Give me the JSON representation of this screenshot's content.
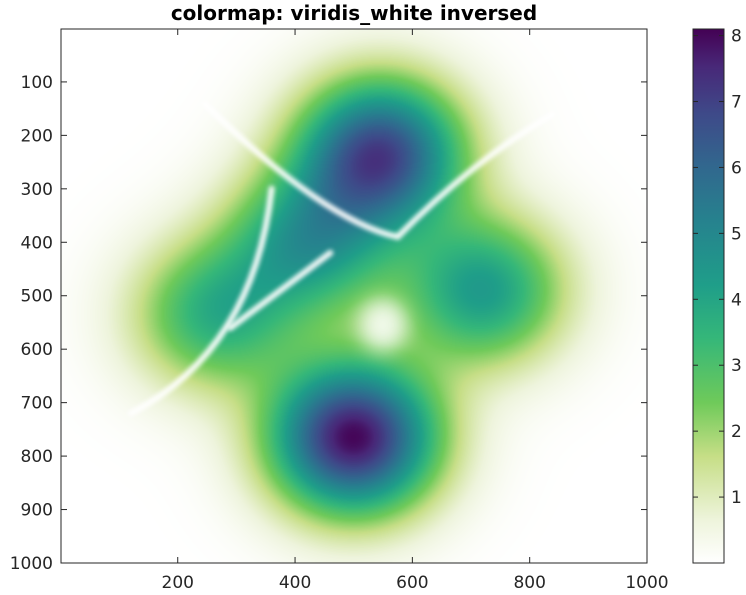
{
  "chart_data": {
    "type": "heatmap",
    "title": "colormap: viridis_white inversed",
    "colormap": "viridis_white inversed",
    "xlabel": "",
    "ylabel": "",
    "xlim": [
      1,
      1000
    ],
    "ylim": [
      1,
      1000
    ],
    "y_direction": "reversed",
    "xticks": [
      200,
      400,
      600,
      800,
      1000
    ],
    "yticks": [
      100,
      200,
      300,
      400,
      500,
      600,
      700,
      800,
      900,
      1000
    ],
    "colorbar": {
      "range": [
        0,
        8.1
      ],
      "ticks": [
        1,
        2,
        3,
        4,
        5,
        6,
        7,
        8
      ]
    },
    "peaks": [
      {
        "x": 500,
        "y": 765,
        "value": 8.0
      },
      {
        "x": 545,
        "y": 235,
        "value": 6.8
      },
      {
        "x": 720,
        "y": 490,
        "value": 4.0
      },
      {
        "x": 425,
        "y": 400,
        "value": 3.9
      },
      {
        "x": 265,
        "y": 535,
        "value": 3.3
      }
    ],
    "zero_level_curves": [
      "arc from (120, 720) through (260, 560) to (360, 300)",
      "curve from (290, 560) through (400, 470) to (460, 420)",
      "curve from (245, 140) through (420, 310) to (575, 390) and (840, 160)",
      "region near (550, 555)"
    ],
    "grid": false,
    "legend": "none"
  }
}
